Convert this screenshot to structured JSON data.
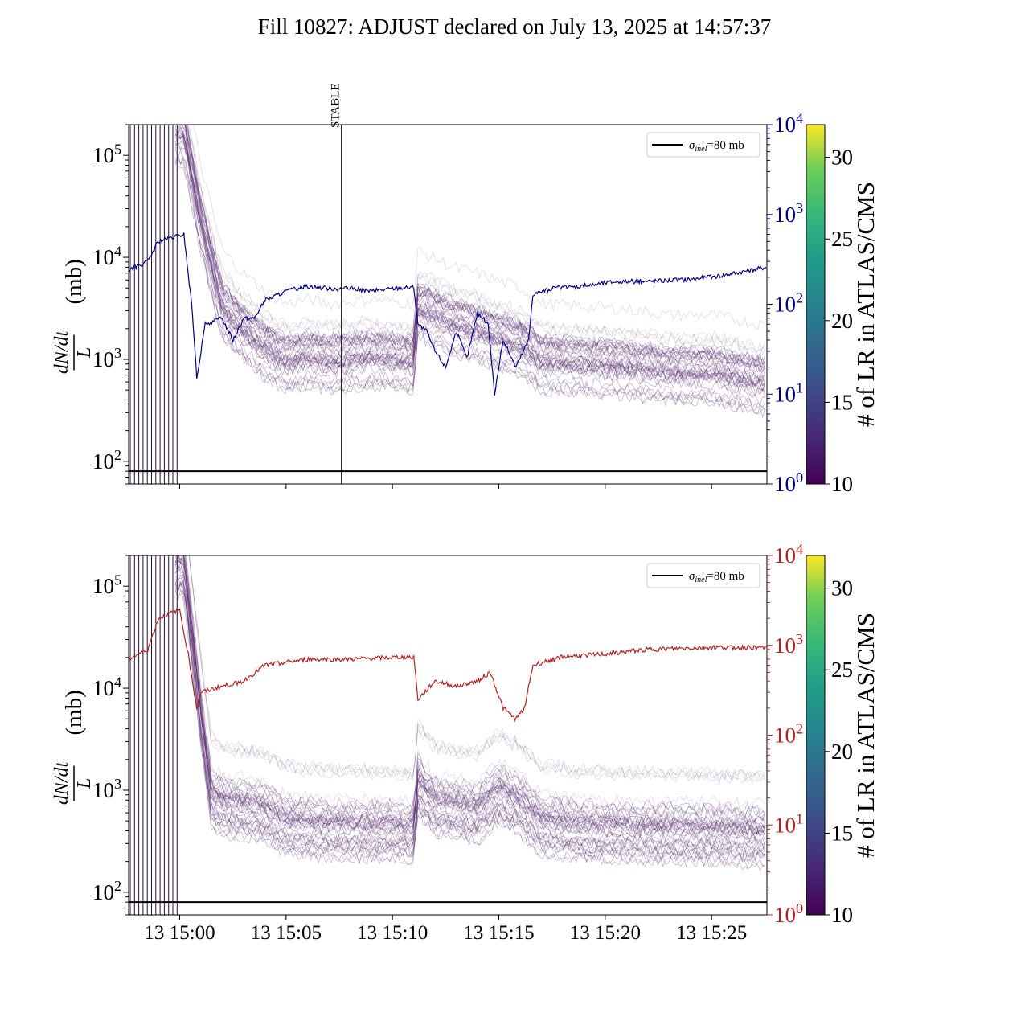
{
  "title": "Fill 10827: ADJUST declared on July 13, 2025 at 14:57:37",
  "chart_data": [
    {
      "type": "line",
      "panel": "top",
      "ylabel_main": "dN/dt / L (mb)",
      "ylabel_num": "dN/dt",
      "ylabel_den": "L",
      "ylabel_unit": "(mb)",
      "yscale": "log",
      "ylim": [
        60,
        200000
      ],
      "yticks": [
        "10^2",
        "10^3",
        "10^4",
        "10^5"
      ],
      "y2scale": "log",
      "y2lim": [
        1,
        10000
      ],
      "y2ticks": [
        "10^0",
        "10^1",
        "10^2",
        "10^3",
        "10^4"
      ],
      "y2color": "#00007f",
      "xlim_minutes": [
        -2.4,
        27.6
      ],
      "annotation": {
        "label": "STABLE",
        "x_minutes": 7.6
      },
      "reference_line": {
        "label": "σinel=80 mb",
        "value": 80
      },
      "legend": {
        "label_sigma": "σ",
        "label_sub": "inel",
        "label_rest": "=80 mb",
        "placement": "top-right"
      },
      "right_series": [
        {
          "t": -2.4,
          "v": 240
        },
        {
          "t": -1.5,
          "v": 300
        },
        {
          "t": -1.0,
          "v": 500
        },
        {
          "t": 0.2,
          "v": 600
        },
        {
          "t": 0.6,
          "v": 80
        },
        {
          "t": 0.8,
          "v": 15
        },
        {
          "t": 1.2,
          "v": 60
        },
        {
          "t": 2.0,
          "v": 70
        },
        {
          "t": 2.5,
          "v": 40
        },
        {
          "t": 3.0,
          "v": 70
        },
        {
          "t": 3.5,
          "v": 70
        },
        {
          "t": 4.0,
          "v": 110
        },
        {
          "t": 5.0,
          "v": 140
        },
        {
          "t": 6.0,
          "v": 160
        },
        {
          "t": 7.0,
          "v": 150
        },
        {
          "t": 8.0,
          "v": 150
        },
        {
          "t": 9.0,
          "v": 140
        },
        {
          "t": 10.0,
          "v": 150
        },
        {
          "t": 11.0,
          "v": 155
        },
        {
          "t": 11.2,
          "v": 60
        },
        {
          "t": 11.6,
          "v": 50
        },
        {
          "t": 12.0,
          "v": 30
        },
        {
          "t": 12.5,
          "v": 20
        },
        {
          "t": 13.0,
          "v": 50
        },
        {
          "t": 13.5,
          "v": 25
        },
        {
          "t": 14.0,
          "v": 80
        },
        {
          "t": 14.5,
          "v": 60
        },
        {
          "t": 14.8,
          "v": 10
        },
        {
          "t": 15.2,
          "v": 40
        },
        {
          "t": 15.8,
          "v": 20
        },
        {
          "t": 16.4,
          "v": 40
        },
        {
          "t": 16.6,
          "v": 130
        },
        {
          "t": 17.5,
          "v": 150
        },
        {
          "t": 19.0,
          "v": 160
        },
        {
          "t": 20.5,
          "v": 180
        },
        {
          "t": 22.0,
          "v": 180
        },
        {
          "t": 24.0,
          "v": 190
        },
        {
          "t": 25.5,
          "v": 210
        },
        {
          "t": 27.6,
          "v": 260
        }
      ],
      "lr_band": [
        {
          "t": 0.2,
          "v": 150000
        },
        {
          "t": 1.0,
          "v": 20000
        },
        {
          "t": 2.0,
          "v": 3000
        },
        {
          "t": 3.0,
          "v": 1800
        },
        {
          "t": 4.0,
          "v": 1200
        },
        {
          "t": 5.0,
          "v": 900
        },
        {
          "t": 6.0,
          "v": 1000
        },
        {
          "t": 7.0,
          "v": 900
        },
        {
          "t": 8.0,
          "v": 950
        },
        {
          "t": 9.0,
          "v": 1000
        },
        {
          "t": 10.0,
          "v": 950
        },
        {
          "t": 11.0,
          "v": 900
        },
        {
          "t": 11.2,
          "v": 3000
        },
        {
          "t": 12.0,
          "v": 2500
        },
        {
          "t": 13.0,
          "v": 2000
        },
        {
          "t": 14.0,
          "v": 1800
        },
        {
          "t": 15.0,
          "v": 1500
        },
        {
          "t": 16.0,
          "v": 1300
        },
        {
          "t": 17.0,
          "v": 900
        },
        {
          "t": 19.0,
          "v": 850
        },
        {
          "t": 21.0,
          "v": 800
        },
        {
          "t": 23.0,
          "v": 700
        },
        {
          "t": 25.0,
          "v": 700
        },
        {
          "t": 27.6,
          "v": 550
        }
      ]
    },
    {
      "type": "line",
      "panel": "bottom",
      "ylabel_main": "dN/dt / L (mb)",
      "ylabel_num": "dN/dt",
      "ylabel_den": "L",
      "ylabel_unit": "(mb)",
      "yscale": "log",
      "ylim": [
        60,
        200000
      ],
      "yticks": [
        "10^2",
        "10^3",
        "10^4",
        "10^5"
      ],
      "y2scale": "log",
      "y2lim": [
        1,
        10000
      ],
      "y2ticks": [
        "10^0",
        "10^1",
        "10^2",
        "10^3",
        "10^4"
      ],
      "y2color": "#b22222",
      "xlim_minutes": [
        -2.4,
        27.6
      ],
      "xticks": [
        {
          "t": 0,
          "label": "13 15:00"
        },
        {
          "t": 5,
          "label": "13 15:05"
        },
        {
          "t": 10,
          "label": "13 15:10"
        },
        {
          "t": 15,
          "label": "13 15:15"
        },
        {
          "t": 20,
          "label": "13 15:20"
        },
        {
          "t": 25,
          "label": "13 15:25"
        }
      ],
      "reference_line": {
        "label": "σinel=80 mb",
        "value": 80
      },
      "legend": {
        "label_sigma": "σ",
        "label_sub": "inel",
        "label_rest": "=80 mb",
        "placement": "top-right"
      },
      "right_series": [
        {
          "t": -2.4,
          "v": 700
        },
        {
          "t": -1.5,
          "v": 900
        },
        {
          "t": -1.0,
          "v": 2000
        },
        {
          "t": 0.0,
          "v": 2500
        },
        {
          "t": 0.4,
          "v": 800
        },
        {
          "t": 0.8,
          "v": 200
        },
        {
          "t": 1.0,
          "v": 300
        },
        {
          "t": 2.0,
          "v": 350
        },
        {
          "t": 3.0,
          "v": 400
        },
        {
          "t": 4.0,
          "v": 600
        },
        {
          "t": 6.0,
          "v": 700
        },
        {
          "t": 8.0,
          "v": 700
        },
        {
          "t": 11.0,
          "v": 750
        },
        {
          "t": 11.2,
          "v": 250
        },
        {
          "t": 12.0,
          "v": 400
        },
        {
          "t": 13.0,
          "v": 350
        },
        {
          "t": 14.0,
          "v": 400
        },
        {
          "t": 14.6,
          "v": 500
        },
        {
          "t": 15.2,
          "v": 200
        },
        {
          "t": 15.8,
          "v": 150
        },
        {
          "t": 16.2,
          "v": 200
        },
        {
          "t": 16.6,
          "v": 600
        },
        {
          "t": 18.0,
          "v": 750
        },
        {
          "t": 20.0,
          "v": 800
        },
        {
          "t": 22.0,
          "v": 900
        },
        {
          "t": 25.0,
          "v": 950
        },
        {
          "t": 27.6,
          "v": 950
        }
      ],
      "lr_band": [
        {
          "t": 0.2,
          "v": 150000
        },
        {
          "t": 1.0,
          "v": 5000
        },
        {
          "t": 1.5,
          "v": 800
        },
        {
          "t": 2.0,
          "v": 700
        },
        {
          "t": 3.0,
          "v": 650
        },
        {
          "t": 4.0,
          "v": 600
        },
        {
          "t": 5.0,
          "v": 450
        },
        {
          "t": 6.0,
          "v": 420
        },
        {
          "t": 8.0,
          "v": 400
        },
        {
          "t": 10.0,
          "v": 400
        },
        {
          "t": 11.0,
          "v": 380
        },
        {
          "t": 11.2,
          "v": 1100
        },
        {
          "t": 12.0,
          "v": 700
        },
        {
          "t": 13.0,
          "v": 650
        },
        {
          "t": 14.0,
          "v": 600
        },
        {
          "t": 15.0,
          "v": 900
        },
        {
          "t": 16.0,
          "v": 700
        },
        {
          "t": 17.0,
          "v": 450
        },
        {
          "t": 19.0,
          "v": 400
        },
        {
          "t": 22.0,
          "v": 380
        },
        {
          "t": 25.0,
          "v": 370
        },
        {
          "t": 27.6,
          "v": 350
        }
      ]
    }
  ],
  "colorbar": {
    "label": "# of LR in ATLAS/CMS",
    "range": [
      10,
      32
    ],
    "ticks": [
      "10",
      "15",
      "20",
      "25",
      "30"
    ],
    "colormap": "viridis"
  }
}
